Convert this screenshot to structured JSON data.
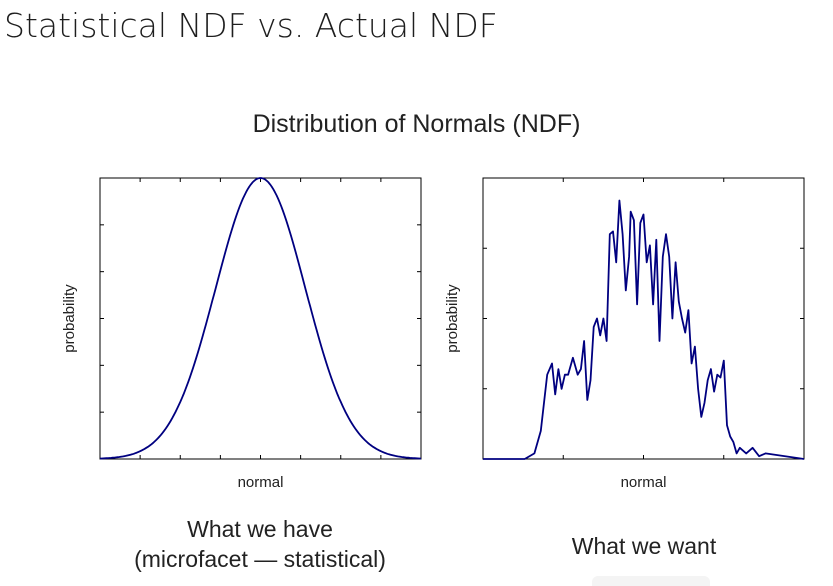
{
  "slide": {
    "title": "Statistical NDF vs. Actual NDF",
    "section_title": "Distribution of Normals (NDF)"
  },
  "colors": {
    "curve": "#000080",
    "axes": "#000000"
  },
  "chart_data": [
    {
      "type": "line",
      "title": "",
      "xlabel": "normal",
      "ylabel": "probability",
      "caption": [
        "What we have",
        "(microfacet — statistical)"
      ],
      "x_ticks_count": 8,
      "y_ticks_count": 6,
      "xlim": [
        0,
        1
      ],
      "ylim": [
        0,
        1
      ],
      "series": [
        {
          "shape": "gaussian",
          "mean": 0.5,
          "sigma": 0.14,
          "peak": 1.0
        }
      ]
    },
    {
      "type": "line",
      "title": "",
      "xlabel": "normal",
      "ylabel": "probability",
      "caption": [
        "What we want"
      ],
      "x_ticks_count": 4,
      "y_ticks_count": 4,
      "xlim": [
        0,
        1
      ],
      "ylim": [
        0,
        1
      ],
      "series": [
        {
          "x": [
            0,
            0.13,
            0.16,
            0.18,
            0.2,
            0.215,
            0.225,
            0.235,
            0.245,
            0.255,
            0.265,
            0.28,
            0.295,
            0.305,
            0.315,
            0.325,
            0.335,
            0.345,
            0.355,
            0.365,
            0.375,
            0.385,
            0.395,
            0.405,
            0.415,
            0.425,
            0.435,
            0.445,
            0.455,
            0.46,
            0.47,
            0.48,
            0.49,
            0.5,
            0.51,
            0.52,
            0.53,
            0.54,
            0.55,
            0.56,
            0.57,
            0.58,
            0.59,
            0.6,
            0.61,
            0.62,
            0.63,
            0.64,
            0.65,
            0.66,
            0.67,
            0.68,
            0.69,
            0.7,
            0.71,
            0.72,
            0.73,
            0.74,
            0.75,
            0.76,
            0.77,
            0.78,
            0.79,
            0.8,
            0.82,
            0.84,
            0.86,
            0.88,
            1.0
          ],
          "y": [
            0,
            0,
            0.02,
            0.1,
            0.3,
            0.34,
            0.23,
            0.32,
            0.25,
            0.3,
            0.3,
            0.36,
            0.3,
            0.32,
            0.42,
            0.21,
            0.28,
            0.47,
            0.5,
            0.44,
            0.5,
            0.42,
            0.8,
            0.81,
            0.7,
            0.92,
            0.8,
            0.6,
            0.72,
            0.88,
            0.85,
            0.55,
            0.84,
            0.87,
            0.7,
            0.76,
            0.55,
            0.78,
            0.42,
            0.72,
            0.8,
            0.72,
            0.5,
            0.7,
            0.56,
            0.5,
            0.45,
            0.53,
            0.34,
            0.4,
            0.25,
            0.15,
            0.2,
            0.28,
            0.32,
            0.24,
            0.3,
            0.29,
            0.35,
            0.12,
            0.08,
            0.06,
            0.02,
            0.04,
            0.02,
            0.04,
            0.01,
            0.02,
            0
          ]
        }
      ]
    }
  ]
}
